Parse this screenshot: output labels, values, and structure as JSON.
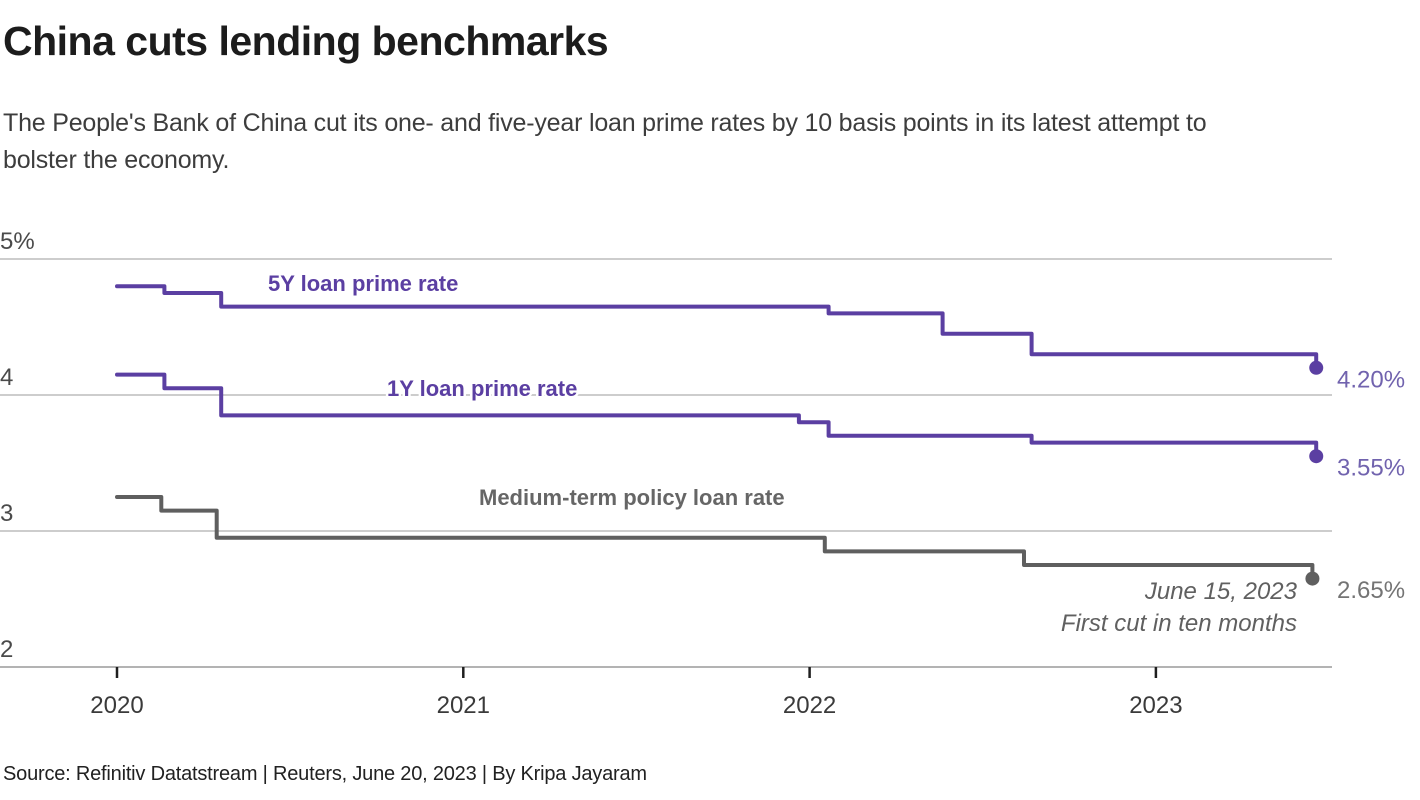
{
  "colors": {
    "purple": "#5b3fa2",
    "purple_value_label": "#7163ae",
    "gray": "#5f5f5f",
    "gray_series_label": "#666666",
    "gray_value_label": "#747474",
    "grid": "#cdcdcd",
    "axis": "#b3b3b3",
    "tick": "#1f1f1f",
    "ytick_label": "#4a4a4a",
    "xtick_label": "#3a3a3a",
    "annotation": "#606060"
  },
  "chart_data": {
    "type": "line",
    "step": true,
    "title": "China cuts lending benchmarks",
    "subtitle_lines": [
      "The People's Bank of China cut its one- and five-year loan prime rates by 10 basis points in its latest attempt to",
      "bolster the economy."
    ],
    "source": "Source: Refinitiv Datatstream | Reuters, June 20, 2023 | By Kripa Jayaram",
    "x_unit": "year",
    "xlim": [
      2019.66,
      2023.51
    ],
    "ylim": [
      2,
      5
    ],
    "grid": true,
    "legend_position": "inline-labels",
    "yticks": [
      {
        "value": 5,
        "label": "5%"
      },
      {
        "value": 4,
        "label": "4"
      },
      {
        "value": 3,
        "label": "3"
      },
      {
        "value": 2,
        "label": "2"
      }
    ],
    "xticks": [
      {
        "value": 2020,
        "label": "2020"
      },
      {
        "value": 2021,
        "label": "2021"
      },
      {
        "value": 2022,
        "label": "2022"
      },
      {
        "value": 2023,
        "label": "2023"
      }
    ],
    "series": [
      {
        "name": "5Y loan prime rate",
        "color_key": "purple",
        "end_label": "4.20%",
        "points": [
          {
            "x": 2020.0,
            "y": 4.8
          },
          {
            "x": 2020.137,
            "y": 4.75
          },
          {
            "x": 2020.301,
            "y": 4.65
          },
          {
            "x": 2022.055,
            "y": 4.6
          },
          {
            "x": 2022.384,
            "y": 4.45
          },
          {
            "x": 2022.641,
            "y": 4.3
          },
          {
            "x": 2023.463,
            "y": 4.2
          }
        ]
      },
      {
        "name": "1Y loan prime rate",
        "color_key": "purple",
        "end_label": "3.55%",
        "points": [
          {
            "x": 2020.0,
            "y": 4.15
          },
          {
            "x": 2020.137,
            "y": 4.05
          },
          {
            "x": 2020.301,
            "y": 3.85
          },
          {
            "x": 2021.969,
            "y": 3.8
          },
          {
            "x": 2022.055,
            "y": 3.7
          },
          {
            "x": 2022.641,
            "y": 3.65
          },
          {
            "x": 2023.463,
            "y": 3.55
          }
        ]
      },
      {
        "name": "Medium-term policy loan rate",
        "color_key": "gray",
        "end_label": "2.65%",
        "points": [
          {
            "x": 2020.0,
            "y": 3.25
          },
          {
            "x": 2020.128,
            "y": 3.15
          },
          {
            "x": 2020.288,
            "y": 2.95
          },
          {
            "x": 2022.044,
            "y": 2.85
          },
          {
            "x": 2022.619,
            "y": 2.75
          },
          {
            "x": 2023.452,
            "y": 2.65
          }
        ]
      }
    ],
    "annotation": {
      "lines": [
        "June 15, 2023",
        "First cut in ten months"
      ]
    }
  }
}
